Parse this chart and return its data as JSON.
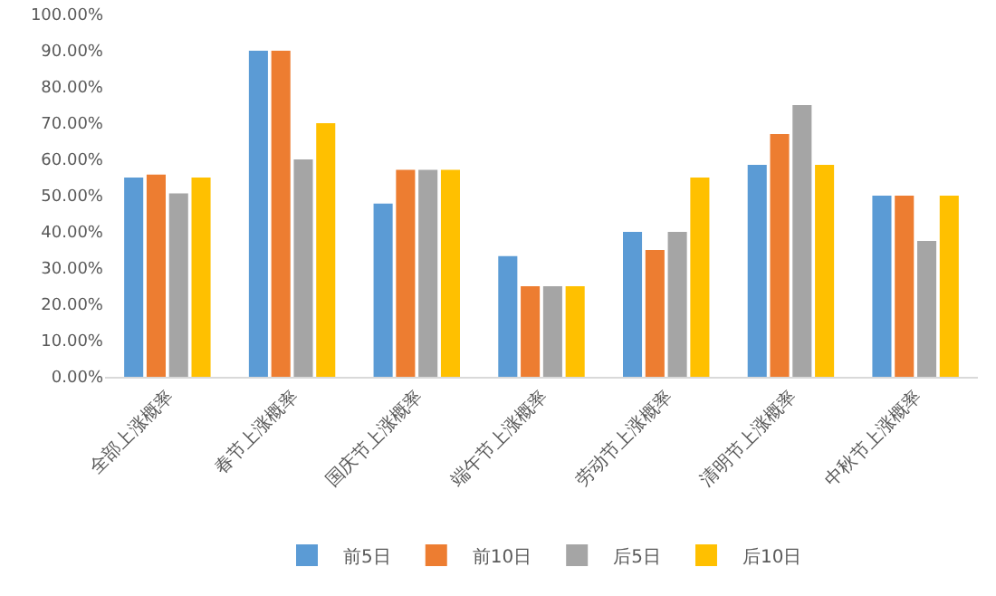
{
  "chart_data": {
    "type": "bar",
    "categories": [
      "全部上涨概率",
      "春节上涨概率",
      "国庆节上涨概率",
      "端午节上涨概率",
      "劳动节上涨概率",
      "清明节上涨概率",
      "中秋节上涨概率"
    ],
    "series": [
      {
        "name": "前5日",
        "color": "#5b9bd5",
        "values": [
          55,
          90,
          47.8,
          33.3,
          40,
          58.5,
          50
        ]
      },
      {
        "name": "前10日",
        "color": "#ed7d31",
        "values": [
          55.8,
          90,
          57.1,
          25,
          35,
          67,
          50
        ]
      },
      {
        "name": "后5日",
        "color": "#a5a5a5",
        "values": [
          50.6,
          60,
          57.1,
          25,
          40,
          75,
          37.5
        ]
      },
      {
        "name": "后10日",
        "color": "#ffc000",
        "values": [
          55,
          70,
          57.1,
          25,
          55,
          58.5,
          50
        ]
      }
    ],
    "ylim": [
      0,
      100
    ],
    "yticks": [
      {
        "value": 0,
        "label": "0.00%"
      },
      {
        "value": 10,
        "label": "10.00%"
      },
      {
        "value": 20,
        "label": "20.00%"
      },
      {
        "value": 30,
        "label": "30.00%"
      },
      {
        "value": 40,
        "label": "40.00%"
      },
      {
        "value": 50,
        "label": "50.00%"
      },
      {
        "value": 60,
        "label": "60.00%"
      },
      {
        "value": 70,
        "label": "70.00%"
      },
      {
        "value": 80,
        "label": "80.00%"
      },
      {
        "value": 90,
        "label": "90.00%"
      },
      {
        "value": 100,
        "label": "100.00%"
      }
    ],
    "grid": false,
    "legend": "bottom"
  }
}
